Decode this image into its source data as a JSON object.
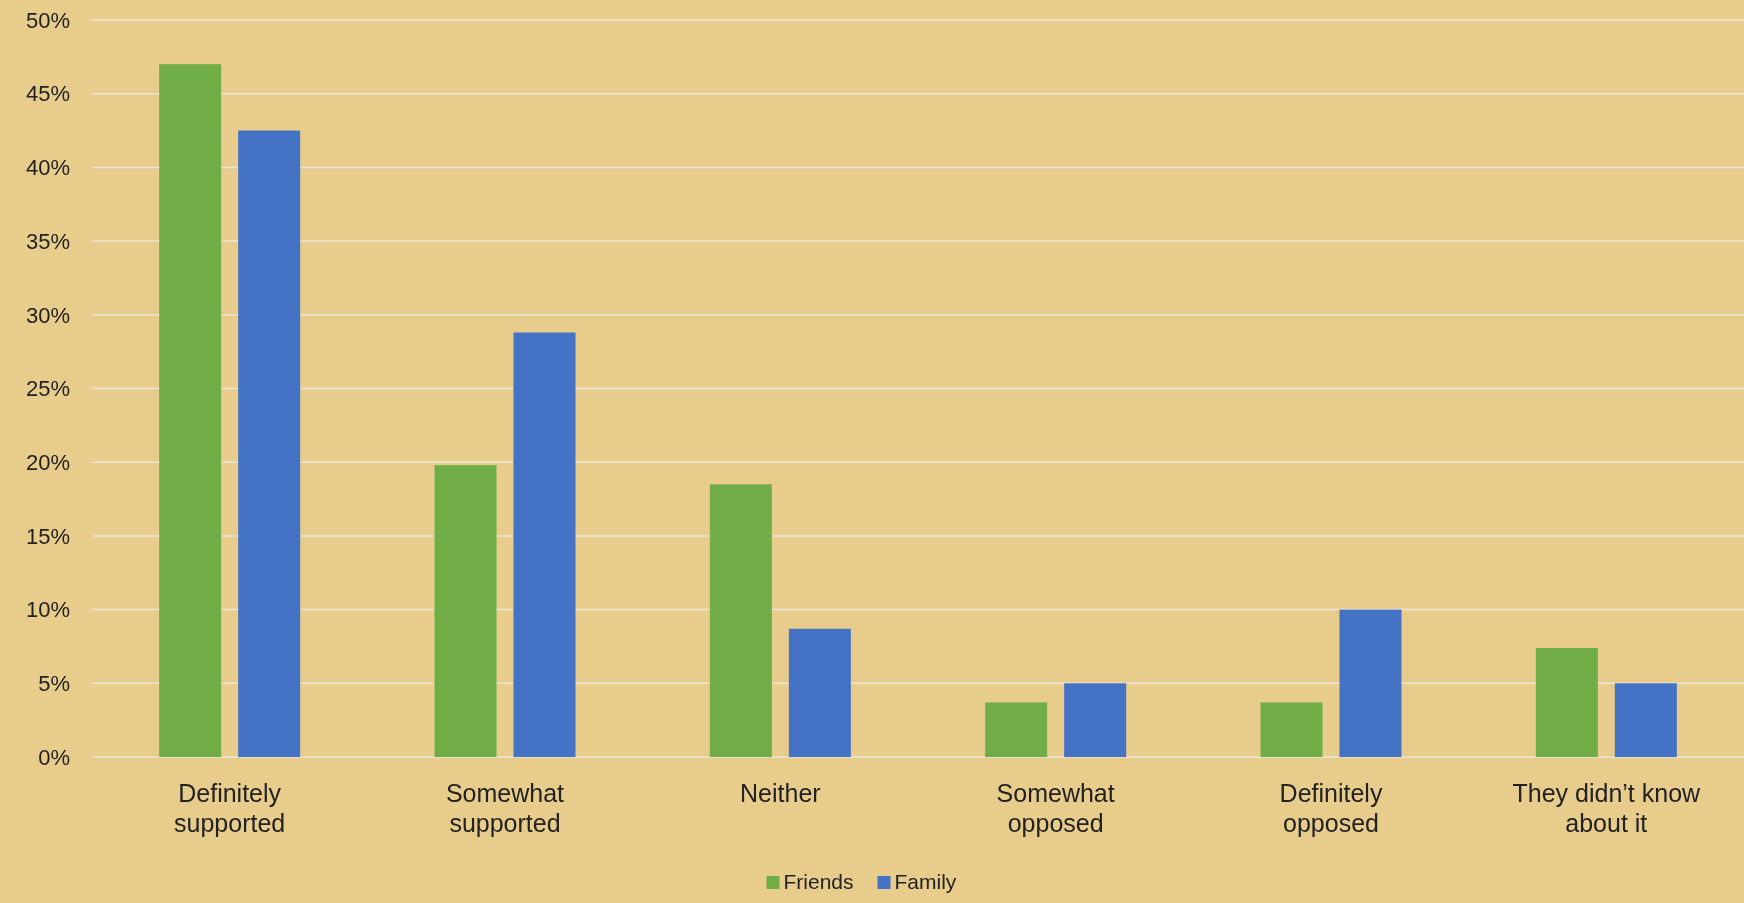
{
  "chart_data": {
    "type": "bar",
    "categories": [
      "Definitely supported",
      "Somewhat supported",
      "Neither",
      "Somewhat opposed",
      "Definitely opposed",
      "They didn’t know about it"
    ],
    "series": [
      {
        "name": "Friends",
        "color": "#70ad47",
        "values": [
          47.0,
          19.8,
          18.5,
          3.7,
          3.7,
          7.4
        ]
      },
      {
        "name": "Family",
        "color": "#4472c4",
        "values": [
          42.5,
          28.8,
          8.7,
          5.0,
          10.0,
          5.0
        ]
      }
    ],
    "ylim": [
      0,
      50
    ],
    "yticks": [
      {
        "value": 0,
        "label": "0%"
      },
      {
        "value": 5,
        "label": "5%"
      },
      {
        "value": 10,
        "label": "10%"
      },
      {
        "value": 15,
        "label": "15%"
      },
      {
        "value": 20,
        "label": "20%"
      },
      {
        "value": 25,
        "label": "25%"
      },
      {
        "value": 30,
        "label": "30%"
      },
      {
        "value": 35,
        "label": "35%"
      },
      {
        "value": 40,
        "label": "40%"
      },
      {
        "value": 45,
        "label": "45%"
      },
      {
        "value": 50,
        "label": "50%"
      }
    ],
    "grid": "y",
    "legend": "bottom"
  }
}
